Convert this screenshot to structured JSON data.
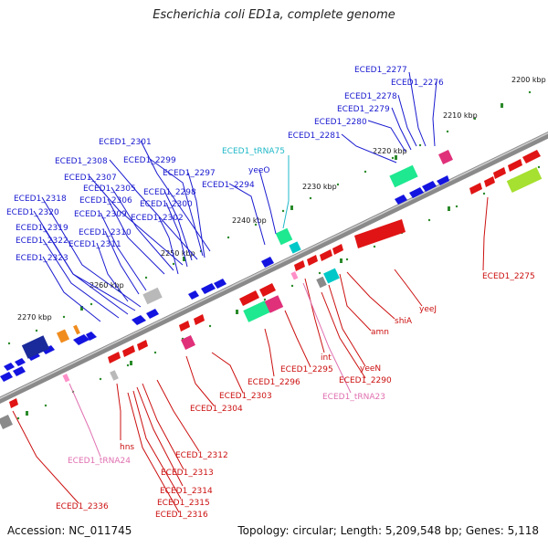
{
  "title": "Escherichia coli ED1a, complete genome",
  "footer": {
    "accession": "Accession: NC_011745",
    "stats": "Topology: circular; Length: 5,209,548 bp; Genes: 5,118"
  },
  "colors": {
    "forward_cds": "#1414e0",
    "reverse_cds": "#e01414",
    "trna": "#ff8fc8",
    "rrna": "#00c8c8",
    "other_feature": "#1ee890",
    "misc": "#e0307a",
    "backbone": "#8a8a8a",
    "forward_label": "#1a1ad0",
    "reverse_label": "#cc1010",
    "trna_label": "#e070b0",
    "rrna_label": "#20b8c8"
  },
  "ticks": [
    {
      "label": "2200 kbp"
    },
    {
      "label": "2210 kbp"
    },
    {
      "label": "2220 kbp"
    },
    {
      "label": "2230 kbp"
    },
    {
      "label": "2240 kbp"
    },
    {
      "label": "2250 kbp"
    },
    {
      "label": "2260 kbp"
    },
    {
      "label": "2270 kbp"
    }
  ],
  "labels_forward": [
    "ECED1_2277",
    "ECED1_2276",
    "ECED1_2278",
    "ECED1_2279",
    "ECED1_2280",
    "ECED1_2281",
    "ECED1_2301",
    "ECED1_2308",
    "ECED1_2299",
    "ECED1_2307",
    "ECED1_2297",
    "ECED1_2305",
    "ECED1_2298",
    "ECED1_2294",
    "ECED1_2318",
    "ECED1_2306",
    "ECED1_2300",
    "ECED1_2320",
    "ECED1_2309",
    "ECED1_2302",
    "ECED1_2319",
    "ECED1_2310",
    "ECED1_2322",
    "ECED1_2311",
    "ECED1_2323",
    "yeeO"
  ],
  "labels_reverse": [
    "ECED1_2275",
    "yeeJ",
    "shiA",
    "amn",
    "int",
    "yeeN",
    "ECED1_2295",
    "ECED1_2290",
    "ECED1_2296",
    "ECED1_2303",
    "ECED1_2304",
    "hns",
    "ECED1_2312",
    "ECED1_2313",
    "ECED1_2314",
    "ECED1_2315",
    "ECED1_2316",
    "ECED1_2336"
  ],
  "labels_trna": [
    "ECED1_tRNA75",
    "ECED1_tRNA23",
    "ECED1_tRNA24"
  ]
}
